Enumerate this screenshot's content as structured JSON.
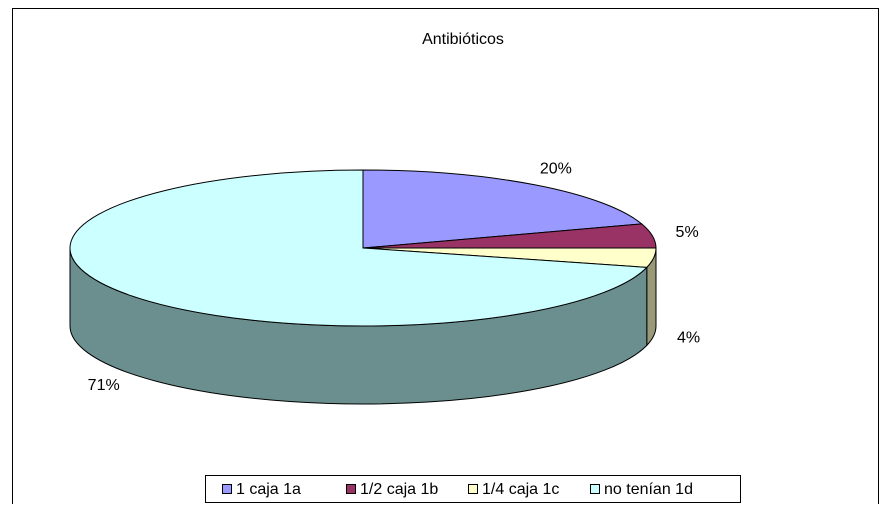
{
  "chart_data": {
    "type": "pie",
    "title": "Antibióticos",
    "categories": [
      "1 caja 1a",
      "1/2 caja 1b",
      "1/4 caja 1c",
      "no tenían 1d"
    ],
    "values": [
      20,
      5,
      4,
      71
    ],
    "value_labels": [
      "20%",
      "5%",
      "4%",
      "71%"
    ],
    "colors": [
      "#9999ff",
      "#993366",
      "#ffffcc",
      "#ccffff"
    ],
    "side_colors": [
      "#5c5c99",
      "#5c1f3d",
      "#99997a",
      "#6b8f8f"
    ],
    "legend": "bottom"
  }
}
